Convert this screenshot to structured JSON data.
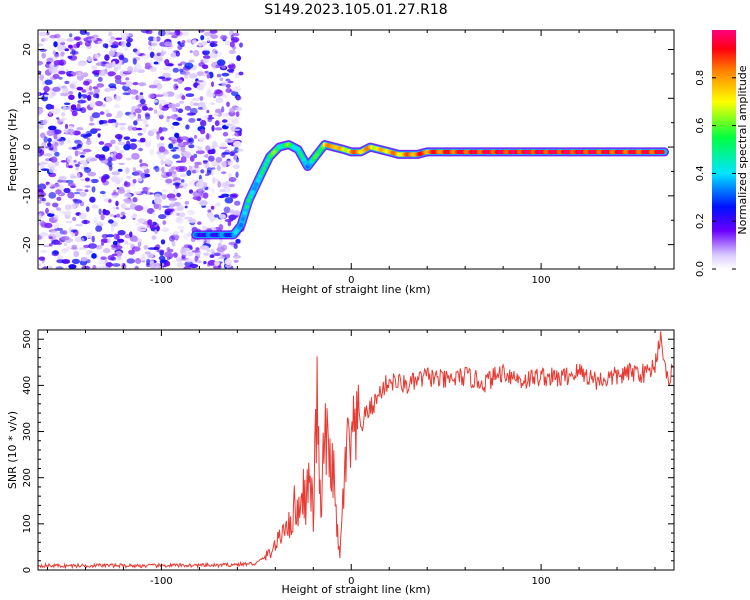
{
  "title": "S149.2023.105.01.27.R18",
  "colors": {
    "snr_line": "#e83a32",
    "axis": "#000000"
  },
  "colorbar": {
    "label": "Normalized spectral amplitude",
    "ticks": [
      "0.0",
      "0.2",
      "0.4",
      "0.6",
      "0.8"
    ],
    "range": [
      0,
      1
    ]
  },
  "chart_data": [
    {
      "type": "heatmap",
      "name": "spectrogram",
      "xlabel": "Height of straight line (km)",
      "ylabel": "Frequency (Hz)",
      "xlim": [
        -165,
        170
      ],
      "ylim": [
        -25,
        24
      ],
      "xticks": [
        -100,
        0,
        100
      ],
      "yticks": [
        -20,
        -10,
        0,
        10,
        20
      ],
      "colormap": "gist_rainbow_white",
      "noise_region_x": [
        -165,
        -58
      ],
      "signal_track": {
        "x": [
          -82,
          -62,
          -58,
          -54,
          -48,
          -43,
          -38,
          -33,
          -28,
          -23,
          -19,
          -14,
          -9,
          -4,
          0,
          5,
          10,
          15,
          20,
          25,
          30,
          35,
          40,
          60,
          80,
          100,
          120,
          140,
          165
        ],
        "freq": [
          -18,
          -18,
          -16,
          -11,
          -6,
          -2,
          0,
          0.5,
          -0.5,
          -4,
          -2,
          0.5,
          0,
          -0.5,
          -1,
          -1,
          0,
          -0.5,
          -1,
          -1.5,
          -1.5,
          -1.5,
          -1,
          -1,
          -1,
          -1,
          -1,
          -1,
          -1
        ],
        "amplitude": [
          0.25,
          0.3,
          0.4,
          0.45,
          0.4,
          0.6,
          0.5,
          0.55,
          0.45,
          0.4,
          0.5,
          0.7,
          0.85,
          0.65,
          0.8,
          0.8,
          0.75,
          0.7,
          0.8,
          0.75,
          0.8,
          0.85,
          0.85,
          0.9,
          0.92,
          0.92,
          0.92,
          0.9,
          0.9
        ]
      }
    },
    {
      "type": "line",
      "name": "snr",
      "xlabel": "Height of straight line (km)",
      "ylabel": "SNR (10 * v/v)",
      "xlim": [
        -165,
        170
      ],
      "ylim": [
        0,
        520
      ],
      "xticks": [
        -100,
        0,
        100
      ],
      "yticks": [
        0,
        100,
        200,
        300,
        400,
        500
      ],
      "x": [
        -165,
        -150,
        -130,
        -110,
        -90,
        -70,
        -60,
        -50,
        -45,
        -42,
        -40,
        -37,
        -35,
        -32,
        -30,
        -28,
        -26,
        -24,
        -22,
        -20,
        -18,
        -16,
        -14,
        -12,
        -10,
        -8,
        -6,
        -4,
        -2,
        0,
        2,
        5,
        8,
        12,
        16,
        20,
        25,
        30,
        35,
        40,
        50,
        60,
        70,
        80,
        90,
        100,
        110,
        120,
        130,
        140,
        150,
        155,
        160,
        163,
        166,
        170
      ],
      "y": [
        10,
        9,
        10,
        9,
        10,
        10,
        12,
        14,
        30,
        40,
        55,
        70,
        110,
        90,
        140,
        120,
        180,
        150,
        200,
        120,
        370,
        100,
        310,
        230,
        250,
        110,
        25,
        180,
        260,
        270,
        290,
        310,
        340,
        360,
        390,
        410,
        405,
        400,
        410,
        420,
        410,
        420,
        405,
        430,
        410,
        420,
        415,
        430,
        410,
        420,
        430,
        425,
        445,
        515,
        410,
        440
      ]
    }
  ]
}
